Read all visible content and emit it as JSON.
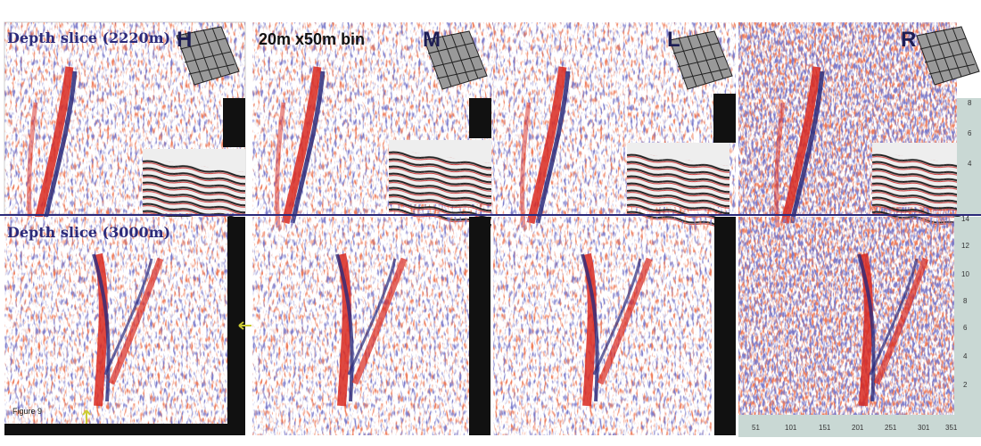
{
  "panels": {
    "top_title": "Depth slice (2220m)",
    "bin_label": "20m x50m bin",
    "bottom_title": "Depth slice (3000m)",
    "labels": [
      "H",
      "M",
      "L",
      "R"
    ]
  },
  "figure_label": "Figure 9",
  "right_axis_top": {
    "ticks": [
      "8",
      "6",
      "4"
    ]
  },
  "right_axis_bottom": {
    "ticks": [
      "14",
      "12",
      "10",
      "8",
      "6",
      "4",
      "2"
    ]
  },
  "bottom_axis": {
    "ticks": [
      "51",
      "101",
      "151",
      "201",
      "251",
      "301",
      "351"
    ]
  }
}
